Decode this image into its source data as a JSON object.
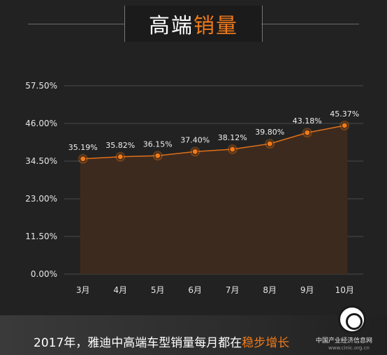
{
  "title": {
    "part1": "高端",
    "part2": "销量"
  },
  "footer": {
    "text": "2017年，雅迪中高端车型销量每月都在",
    "accent": "稳步增长"
  },
  "watermark": {
    "name": "中国产业经济信息网",
    "url": "www.cinic.org.cn"
  },
  "colors": {
    "accent": "#f07a1a",
    "line": "#e0701a",
    "area": "#3d2a1e",
    "background": "#222222"
  },
  "chart_data": {
    "type": "area",
    "categories": [
      "3月",
      "4月",
      "5月",
      "6月",
      "7月",
      "8月",
      "9月",
      "10月"
    ],
    "values": [
      35.19,
      35.82,
      36.15,
      37.4,
      38.12,
      39.8,
      43.18,
      45.37
    ],
    "data_labels": [
      "35.19%",
      "35.82%",
      "36.15%",
      "37.40%",
      "38.12%",
      "39.80%",
      "43.18%",
      "45.37%"
    ],
    "y_ticks": [
      0,
      11.5,
      23,
      34.5,
      46,
      57.5
    ],
    "y_tick_labels": [
      "0.00%",
      "11.50%",
      "23.00%",
      "34.50%",
      "46.00%",
      "57.50%"
    ],
    "ylim": [
      0,
      57.5
    ],
    "grid": true
  }
}
